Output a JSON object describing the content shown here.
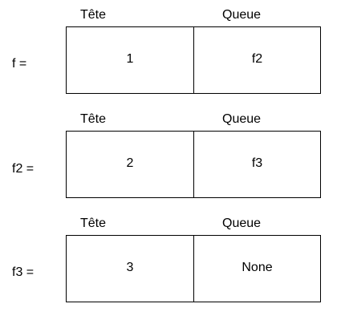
{
  "nodes": [
    {
      "name": "f =",
      "head_header": "Tête",
      "tail_header": "Queue",
      "head_value": "1",
      "tail_value": "f2"
    },
    {
      "name": "f2 =",
      "head_header": "Tête",
      "tail_header": "Queue",
      "head_value": "2",
      "tail_value": "f3"
    },
    {
      "name": "f3 =",
      "head_header": "Tête",
      "tail_header": "Queue",
      "head_value": "3",
      "tail_value": "None"
    }
  ]
}
